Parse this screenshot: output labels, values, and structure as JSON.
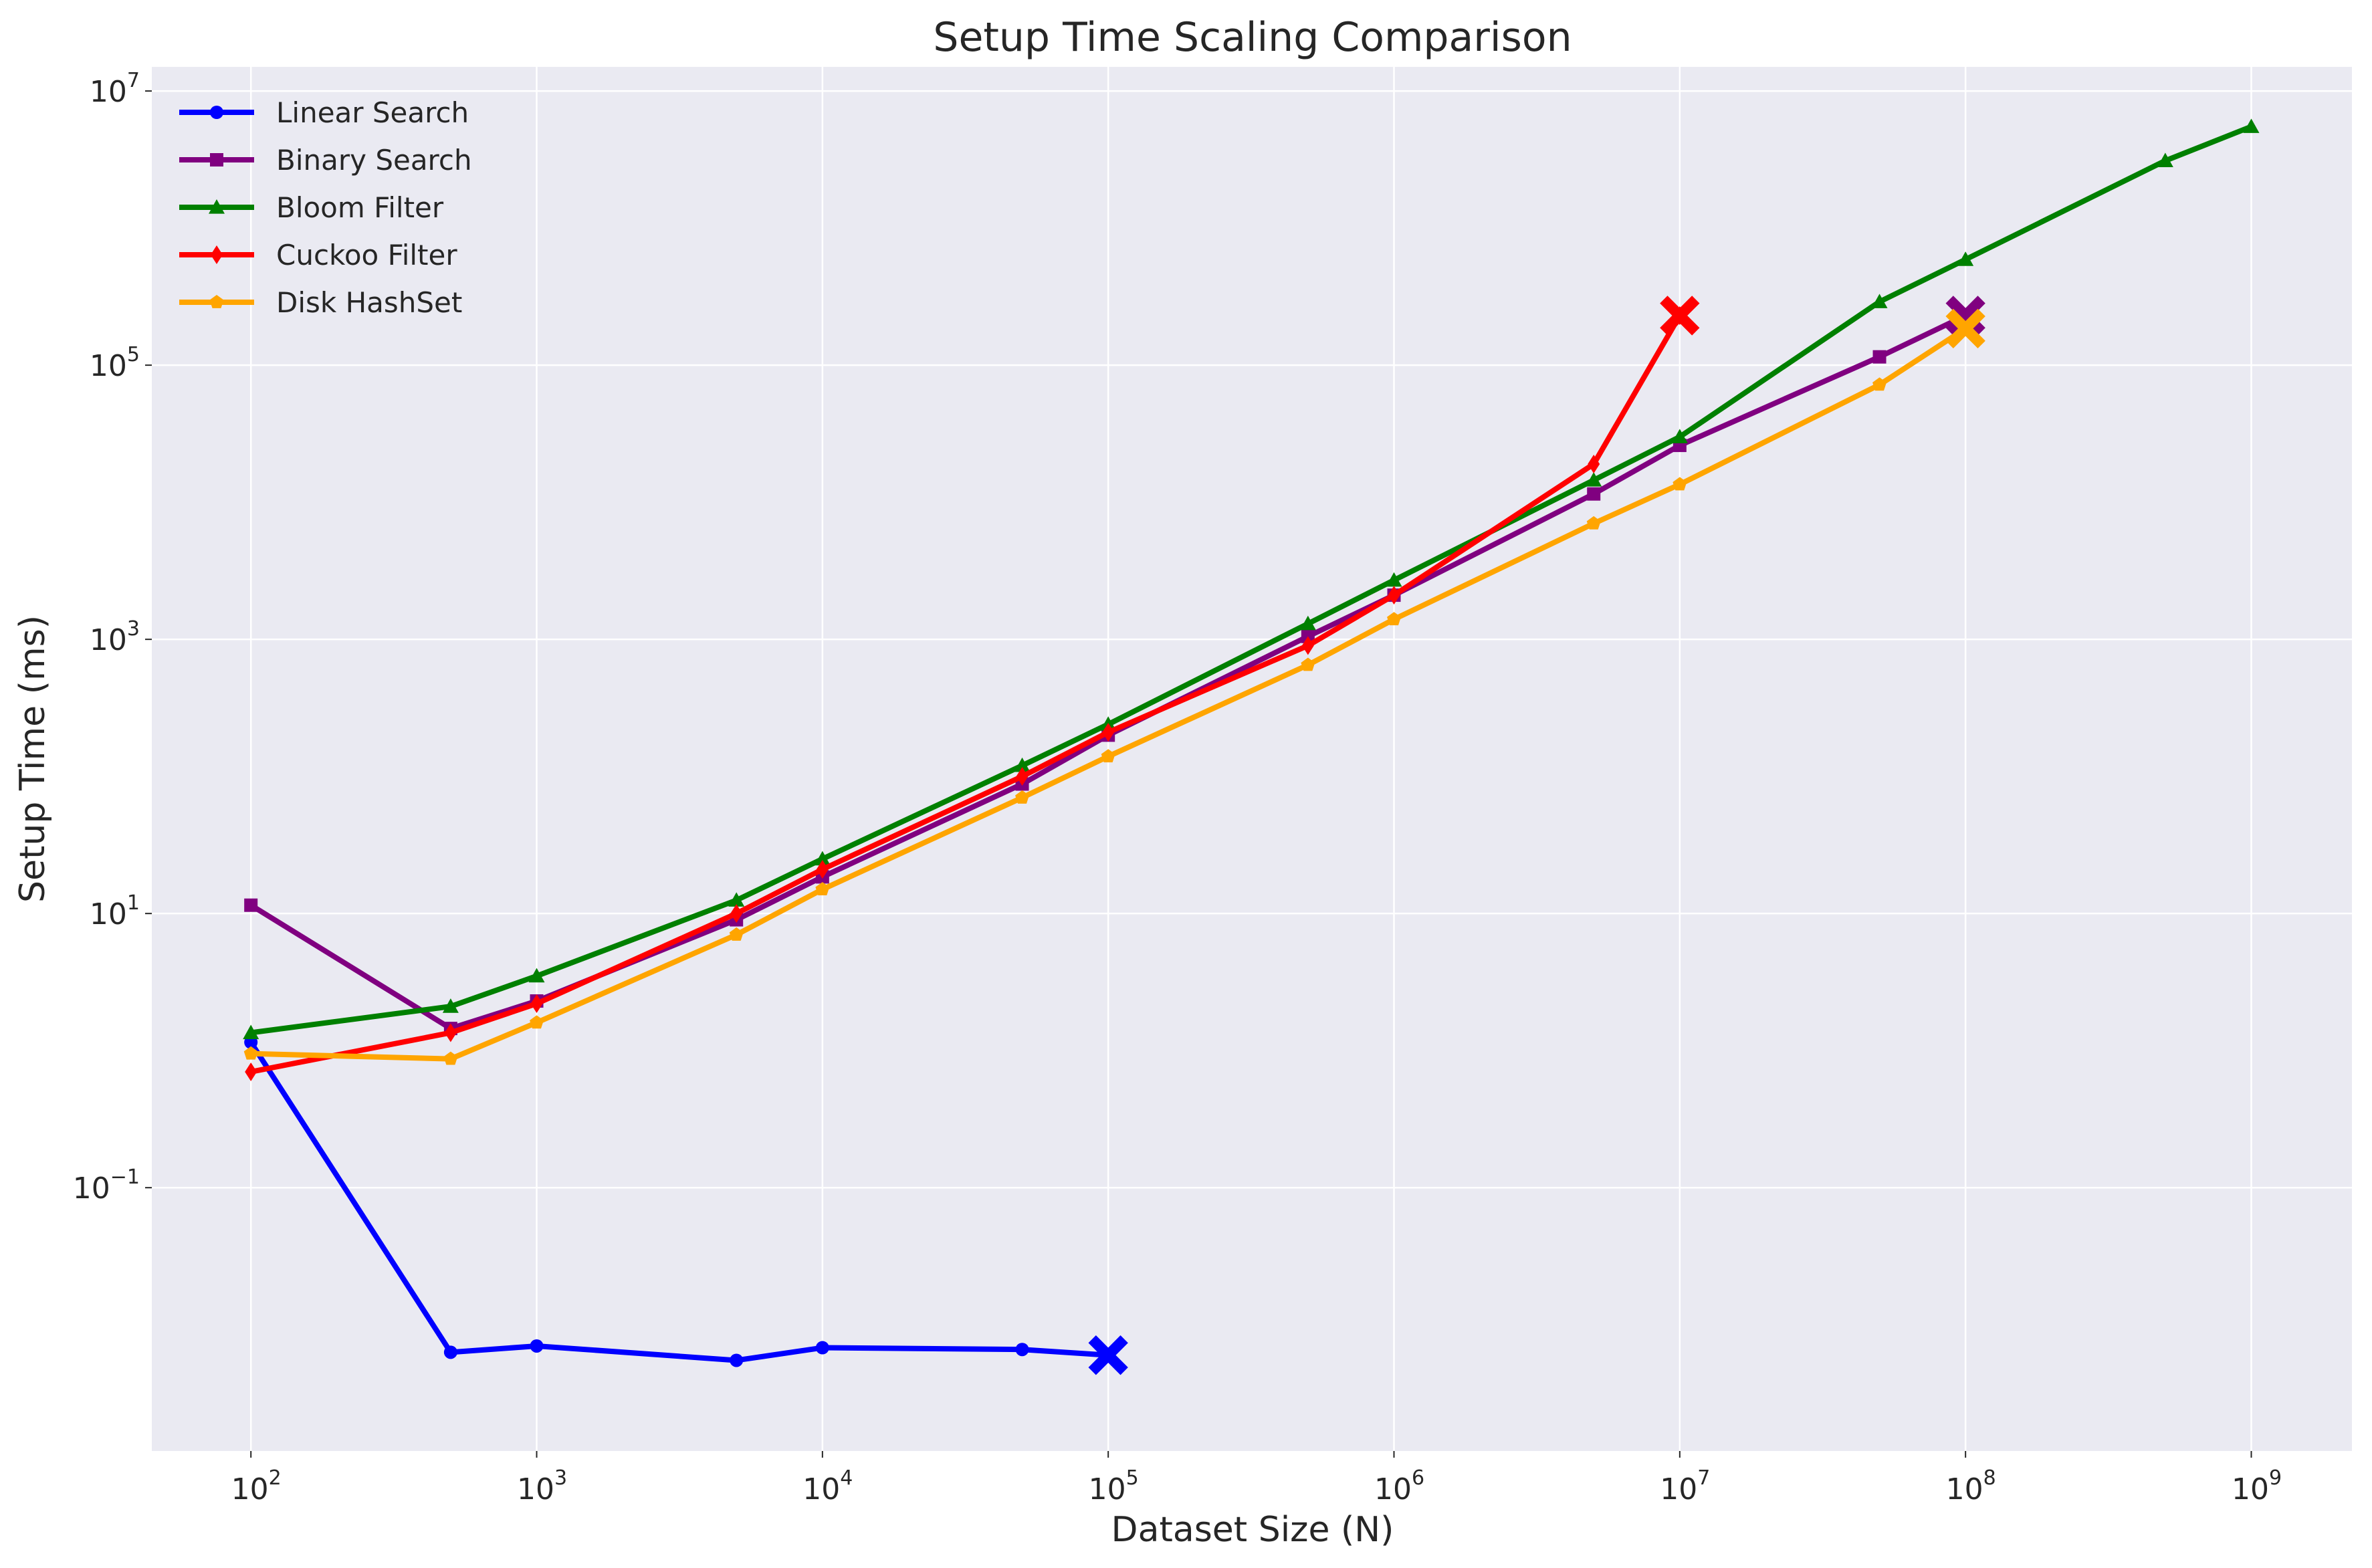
{
  "chart_data": {
    "type": "line",
    "title": "Setup Time Scaling Comparison",
    "xlabel": "Dataset Size (N)",
    "ylabel": "Setup Time (ms)",
    "x_scale": "log",
    "y_scale": "log",
    "xlim": [
      45,
      2250000000
    ],
    "ylim": [
      0.0012,
      15000000
    ],
    "x_ticks": [
      {
        "value": 100,
        "base": "10",
        "exp": "2"
      },
      {
        "value": 1000,
        "base": "10",
        "exp": "3"
      },
      {
        "value": 10000,
        "base": "10",
        "exp": "4"
      },
      {
        "value": 100000,
        "base": "10",
        "exp": "5"
      },
      {
        "value": 1000000,
        "base": "10",
        "exp": "6"
      },
      {
        "value": 10000000,
        "base": "10",
        "exp": "7"
      },
      {
        "value": 100000000,
        "base": "10",
        "exp": "8"
      },
      {
        "value": 1000000000,
        "base": "10",
        "exp": "9"
      }
    ],
    "y_ticks": [
      {
        "value": 0.1,
        "base": "10",
        "exp": "−1"
      },
      {
        "value": 10,
        "base": "10",
        "exp": "1"
      },
      {
        "value": 1000,
        "base": "10",
        "exp": "3"
      },
      {
        "value": 100000,
        "base": "10",
        "exp": "5"
      },
      {
        "value": 10000000,
        "base": "10",
        "exp": "7"
      }
    ],
    "grid": true,
    "legend_position": "top-left",
    "background_color": "#eaeaf2",
    "grid_color": "#ffffff",
    "series": [
      {
        "name": "Linear Search",
        "color": "#0000ff",
        "marker": "circle",
        "x": [
          100,
          500,
          1000,
          5000,
          10000,
          50000,
          100000
        ],
        "y": [
          1.15,
          0.0063,
          0.007,
          0.0055,
          0.0068,
          0.0066,
          0.006
        ],
        "end_marker": {
          "x": 100000,
          "y": 0.006,
          "shape": "x"
        }
      },
      {
        "name": "Binary Search",
        "color": "#800080",
        "marker": "square",
        "x": [
          100,
          500,
          1000,
          5000,
          10000,
          50000,
          100000,
          500000,
          1000000,
          5000000,
          10000000,
          50000000,
          100000000
        ],
        "y": [
          11.5,
          1.45,
          2.3,
          9.0,
          18.5,
          88,
          200,
          1050,
          2100,
          11500,
          26000,
          115000,
          230000
        ],
        "end_marker": {
          "x": 100000000,
          "y": 230000,
          "shape": "x"
        }
      },
      {
        "name": "Bloom Filter",
        "color": "#008000",
        "marker": "triangle",
        "x": [
          100,
          500,
          1000,
          5000,
          10000,
          50000,
          100000,
          500000,
          1000000,
          5000000,
          10000000,
          50000000,
          100000000,
          500000000,
          1000000000
        ],
        "y": [
          1.35,
          2.1,
          3.5,
          12.5,
          25,
          120,
          240,
          1300,
          2700,
          14500,
          30000,
          290000,
          590000,
          3100000,
          5500000
        ]
      },
      {
        "name": "Cuckoo Filter",
        "color": "#ff0000",
        "marker": "diamond",
        "x": [
          100,
          500,
          1000,
          5000,
          10000,
          50000,
          100000,
          500000,
          1000000,
          5000000,
          10000000
        ],
        "y": [
          0.7,
          1.35,
          2.2,
          10,
          21,
          100,
          210,
          900,
          2100,
          19000,
          230000
        ],
        "end_marker": {
          "x": 10000000,
          "y": 230000,
          "shape": "x"
        }
      },
      {
        "name": "Disk HashSet",
        "color": "#ffa500",
        "marker": "pentagon",
        "x": [
          100,
          500,
          1000,
          5000,
          10000,
          50000,
          100000,
          500000,
          1000000,
          5000000,
          10000000,
          50000000,
          100000000
        ],
        "y": [
          0.95,
          0.87,
          1.6,
          7.0,
          15,
          70,
          140,
          650,
          1400,
          7000,
          13500,
          72000,
          185000
        ],
        "end_marker": {
          "x": 100000000,
          "y": 185000,
          "shape": "x"
        }
      }
    ]
  }
}
